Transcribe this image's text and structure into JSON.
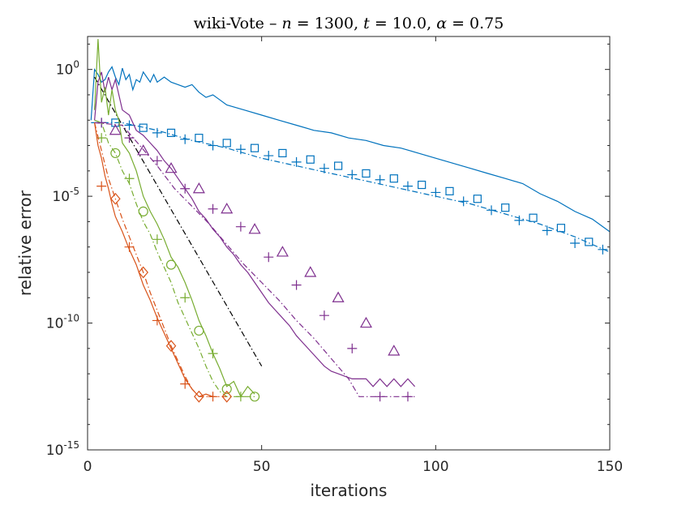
{
  "chart_data": {
    "type": "line",
    "title_parts": [
      "wiki-Vote – ",
      "n",
      " = 1300, ",
      "t",
      " = 10.0, ",
      "α",
      " = 0.75"
    ],
    "title": "wiki-Vote – n = 1300, t = 10.0, α = 0.75",
    "xlabel": "iterations",
    "ylabel": "relative error",
    "xlim": [
      0,
      150
    ],
    "ylim_log10": [
      -15,
      1.3
    ],
    "yscale": "log",
    "x_ticks": [
      0,
      50,
      100,
      150
    ],
    "x_tick_labels": [
      "0",
      "50",
      "100",
      "150"
    ],
    "y_ticks_log10": [
      -15,
      -10,
      -5,
      0
    ],
    "y_tick_labels": [
      {
        "base": "10",
        "exp": "-15"
      },
      {
        "base": "10",
        "exp": "-10"
      },
      {
        "base": "10",
        "exp": "-5"
      },
      {
        "base": "10",
        "exp": "0"
      }
    ],
    "grid": false,
    "series": [
      {
        "name": "blue-solid",
        "color": "#0072BD",
        "dash": "solid",
        "marker": "none",
        "points": [
          [
            1,
            -2
          ],
          [
            2,
            0
          ],
          [
            3,
            -0.2
          ],
          [
            4,
            -0.5
          ],
          [
            5,
            -0.4
          ],
          [
            6,
            -0.1
          ],
          [
            7,
            0.1
          ],
          [
            8,
            -0.3
          ],
          [
            9,
            -0.6
          ],
          [
            10,
            0.05
          ],
          [
            11,
            -0.4
          ],
          [
            12,
            -0.2
          ],
          [
            13,
            -0.8
          ],
          [
            14,
            -0.4
          ],
          [
            15,
            -0.5
          ],
          [
            16,
            -0.1
          ],
          [
            17,
            -0.3
          ],
          [
            18,
            -0.5
          ],
          [
            19,
            -0.2
          ],
          [
            20,
            -0.5
          ],
          [
            22,
            -0.3
          ],
          [
            24,
            -0.5
          ],
          [
            26,
            -0.6
          ],
          [
            28,
            -0.7
          ],
          [
            30,
            -0.6
          ],
          [
            32,
            -0.9
          ],
          [
            34,
            -1.1
          ],
          [
            36,
            -1.0
          ],
          [
            38,
            -1.2
          ],
          [
            40,
            -1.4
          ],
          [
            45,
            -1.6
          ],
          [
            50,
            -1.8
          ],
          [
            55,
            -2.0
          ],
          [
            60,
            -2.2
          ],
          [
            65,
            -2.4
          ],
          [
            70,
            -2.5
          ],
          [
            75,
            -2.7
          ],
          [
            80,
            -2.8
          ],
          [
            85,
            -3.0
          ],
          [
            90,
            -3.1
          ],
          [
            95,
            -3.3
          ],
          [
            100,
            -3.5
          ],
          [
            105,
            -3.7
          ],
          [
            110,
            -3.9
          ],
          [
            115,
            -4.1
          ],
          [
            120,
            -4.3
          ],
          [
            125,
            -4.5
          ],
          [
            130,
            -4.9
          ],
          [
            135,
            -5.2
          ],
          [
            140,
            -5.6
          ],
          [
            145,
            -5.9
          ],
          [
            150,
            -6.4
          ]
        ]
      },
      {
        "name": "blue-dashdot-square",
        "color": "#0072BD",
        "dash": "dashdot",
        "marker": "square",
        "points": [
          [
            1,
            -2.1
          ],
          [
            10,
            -2.1
          ],
          [
            20,
            -2.4
          ],
          [
            30,
            -2.8
          ],
          [
            40,
            -3.1
          ],
          [
            50,
            -3.5
          ],
          [
            60,
            -3.8
          ],
          [
            70,
            -4.1
          ],
          [
            80,
            -4.4
          ],
          [
            90,
            -4.7
          ],
          [
            100,
            -5.0
          ],
          [
            110,
            -5.3
          ],
          [
            120,
            -5.7
          ],
          [
            130,
            -6.1
          ],
          [
            140,
            -6.6
          ],
          [
            150,
            -7.2
          ]
        ],
        "marker_x": [
          8,
          16,
          24,
          32,
          40,
          48,
          56,
          64,
          72,
          80,
          88,
          96,
          104,
          112,
          120,
          128,
          136,
          144
        ],
        "marker_y": [
          -2.1,
          -2.3,
          -2.5,
          -2.7,
          -2.9,
          -3.1,
          -3.3,
          -3.55,
          -3.8,
          -4.1,
          -4.3,
          -4.55,
          -4.8,
          -5.1,
          -5.45,
          -5.85,
          -6.25,
          -6.8
        ]
      },
      {
        "name": "blue-plus",
        "color": "#0072BD",
        "dash": "none",
        "marker": "plus",
        "marker_x": [
          4,
          12,
          20,
          28,
          36,
          44,
          52,
          60,
          68,
          76,
          84,
          92,
          100,
          108,
          116,
          124,
          132,
          140,
          148
        ],
        "marker_y": [
          -2.1,
          -2.2,
          -2.5,
          -2.75,
          -3.0,
          -3.15,
          -3.4,
          -3.65,
          -3.9,
          -4.15,
          -4.35,
          -4.6,
          -4.85,
          -5.2,
          -5.55,
          -5.95,
          -6.35,
          -6.85,
          -7.1
        ]
      },
      {
        "name": "black-dashdot",
        "color": "#000000",
        "dash": "dashdot",
        "marker": "none",
        "points": [
          [
            2,
            -0.3
          ],
          [
            50,
            -11.7
          ]
        ]
      },
      {
        "name": "purple-solid",
        "color": "#7E2F8E",
        "dash": "solid",
        "marker": "none",
        "points": [
          [
            2,
            -2
          ],
          [
            3,
            -0.5
          ],
          [
            4,
            -0.1
          ],
          [
            5,
            -0.9
          ],
          [
            6,
            -0.3
          ],
          [
            7,
            -0.8
          ],
          [
            8,
            -0.4
          ],
          [
            9,
            -1.0
          ],
          [
            10,
            -1.6
          ],
          [
            12,
            -1.8
          ],
          [
            14,
            -2.4
          ],
          [
            16,
            -2.6
          ],
          [
            18,
            -2.9
          ],
          [
            20,
            -3.2
          ],
          [
            22,
            -3.6
          ],
          [
            24,
            -3.9
          ],
          [
            26,
            -4.3
          ],
          [
            28,
            -4.7
          ],
          [
            30,
            -5.1
          ],
          [
            32,
            -5.6
          ],
          [
            34,
            -5.9
          ],
          [
            36,
            -6.3
          ],
          [
            38,
            -6.6
          ],
          [
            40,
            -7.0
          ],
          [
            42,
            -7.3
          ],
          [
            44,
            -7.7
          ],
          [
            46,
            -8.0
          ],
          [
            48,
            -8.4
          ],
          [
            50,
            -8.8
          ],
          [
            52,
            -9.2
          ],
          [
            54,
            -9.5
          ],
          [
            56,
            -9.8
          ],
          [
            58,
            -10.1
          ],
          [
            60,
            -10.5
          ],
          [
            62,
            -10.8
          ],
          [
            64,
            -11.1
          ],
          [
            66,
            -11.4
          ],
          [
            68,
            -11.7
          ],
          [
            70,
            -11.9
          ],
          [
            72,
            -12.0
          ],
          [
            74,
            -12.1
          ],
          [
            76,
            -12.2
          ],
          [
            78,
            -12.2
          ],
          [
            80,
            -12.2
          ],
          [
            82,
            -12.5
          ],
          [
            84,
            -12.2
          ],
          [
            86,
            -12.5
          ],
          [
            88,
            -12.2
          ],
          [
            90,
            -12.5
          ],
          [
            92,
            -12.2
          ],
          [
            94,
            -12.5
          ]
        ]
      },
      {
        "name": "purple-dashdot-triangle",
        "color": "#7E2F8E",
        "dash": "dashdot",
        "marker": "triangle",
        "points": [
          [
            2,
            -2.1
          ],
          [
            10,
            -2.2
          ],
          [
            15,
            -3.0
          ],
          [
            20,
            -3.8
          ],
          [
            25,
            -4.7
          ],
          [
            30,
            -5.4
          ],
          [
            35,
            -6.1
          ],
          [
            40,
            -6.9
          ],
          [
            45,
            -7.7
          ],
          [
            50,
            -8.4
          ],
          [
            55,
            -9.1
          ],
          [
            60,
            -9.9
          ],
          [
            65,
            -10.6
          ],
          [
            70,
            -11.4
          ],
          [
            75,
            -12.2
          ],
          [
            78,
            -12.9
          ],
          [
            85,
            -12.9
          ],
          [
            94,
            -12.9
          ]
        ],
        "marker_x": [
          8,
          16,
          24,
          32,
          40,
          48,
          56,
          64,
          72,
          80,
          88
        ],
        "marker_y": [
          -2.4,
          -3.2,
          -3.9,
          -4.7,
          -5.5,
          -6.3,
          -7.2,
          -8.0,
          -9.0,
          -10.0,
          -11.1
        ]
      },
      {
        "name": "purple-plus",
        "color": "#7E2F8E",
        "dash": "none",
        "marker": "plus",
        "marker_x": [
          4,
          12,
          20,
          28,
          36,
          44,
          52,
          60,
          68,
          76,
          84,
          92
        ],
        "marker_y": [
          -2.1,
          -2.7,
          -3.6,
          -4.7,
          -5.5,
          -6.2,
          -7.4,
          -8.5,
          -9.7,
          -11.0,
          -12.9,
          -12.9
        ]
      },
      {
        "name": "green-solid",
        "color": "#77AC30",
        "dash": "solid",
        "marker": "none",
        "points": [
          [
            2,
            -1.6
          ],
          [
            3,
            1.2
          ],
          [
            4,
            -1.3
          ],
          [
            5,
            -0.7
          ],
          [
            6,
            -1.8
          ],
          [
            7,
            -0.8
          ],
          [
            8,
            -1.6
          ],
          [
            9,
            -2.0
          ],
          [
            10,
            -2.9
          ],
          [
            12,
            -3.3
          ],
          [
            14,
            -4.0
          ],
          [
            16,
            -5.0
          ],
          [
            18,
            -5.6
          ],
          [
            20,
            -6.1
          ],
          [
            22,
            -6.7
          ],
          [
            24,
            -7.4
          ],
          [
            26,
            -7.8
          ],
          [
            28,
            -8.4
          ],
          [
            30,
            -9.1
          ],
          [
            32,
            -9.9
          ],
          [
            34,
            -10.5
          ],
          [
            36,
            -11.2
          ],
          [
            38,
            -11.8
          ],
          [
            40,
            -12.5
          ],
          [
            42,
            -12.3
          ],
          [
            44,
            -12.9
          ],
          [
            46,
            -12.5
          ],
          [
            48,
            -12.8
          ]
        ]
      },
      {
        "name": "green-dashdot-circle",
        "color": "#77AC30",
        "dash": "dashdot",
        "marker": "circle",
        "points": [
          [
            2,
            -2.0
          ],
          [
            4,
            -2.1
          ],
          [
            6,
            -2.9
          ],
          [
            8,
            -3.3
          ],
          [
            10,
            -4.0
          ],
          [
            12,
            -4.5
          ],
          [
            14,
            -5.3
          ],
          [
            16,
            -6.0
          ],
          [
            18,
            -6.5
          ],
          [
            20,
            -7.2
          ],
          [
            22,
            -7.8
          ],
          [
            24,
            -8.4
          ],
          [
            26,
            -9.2
          ],
          [
            28,
            -9.8
          ],
          [
            30,
            -10.4
          ],
          [
            32,
            -11.0
          ],
          [
            34,
            -11.7
          ],
          [
            36,
            -12.3
          ],
          [
            38,
            -12.7
          ],
          [
            40,
            -12.9
          ],
          [
            44,
            -12.9
          ],
          [
            48,
            -12.9
          ]
        ],
        "marker_x": [
          8,
          16,
          24,
          32,
          40,
          48
        ],
        "marker_y": [
          -3.3,
          -5.6,
          -7.7,
          -10.3,
          -12.6,
          -12.9
        ]
      },
      {
        "name": "green-plus",
        "color": "#77AC30",
        "dash": "none",
        "marker": "plus",
        "marker_x": [
          4,
          12,
          20,
          28,
          36,
          44
        ],
        "marker_y": [
          -2.7,
          -4.3,
          -6.7,
          -9.0,
          -11.2,
          -12.9
        ]
      },
      {
        "name": "orange-solid",
        "color": "#D95319",
        "dash": "solid",
        "marker": "none",
        "points": [
          [
            2,
            -2.1
          ],
          [
            3,
            -3.0
          ],
          [
            4,
            -3.5
          ],
          [
            5,
            -4.2
          ],
          [
            6,
            -4.7
          ],
          [
            7,
            -5.3
          ],
          [
            8,
            -5.8
          ],
          [
            10,
            -6.4
          ],
          [
            12,
            -7.1
          ],
          [
            14,
            -7.7
          ],
          [
            16,
            -8.5
          ],
          [
            18,
            -9.1
          ],
          [
            20,
            -9.8
          ],
          [
            22,
            -10.4
          ],
          [
            24,
            -11.0
          ],
          [
            26,
            -11.6
          ],
          [
            28,
            -12.2
          ],
          [
            30,
            -12.6
          ],
          [
            32,
            -12.9
          ],
          [
            34,
            -12.8
          ],
          [
            36,
            -12.9
          ]
        ]
      },
      {
        "name": "orange-dashdot-diamond",
        "color": "#D95319",
        "dash": "dashdot",
        "marker": "diamond",
        "points": [
          [
            2,
            -2.1
          ],
          [
            4,
            -3.2
          ],
          [
            6,
            -4.3
          ],
          [
            8,
            -5.1
          ],
          [
            10,
            -5.9
          ],
          [
            12,
            -6.6
          ],
          [
            14,
            -7.3
          ],
          [
            16,
            -8.0
          ],
          [
            18,
            -8.8
          ],
          [
            20,
            -9.5
          ],
          [
            22,
            -10.2
          ],
          [
            24,
            -10.9
          ],
          [
            26,
            -11.5
          ],
          [
            28,
            -12.1
          ],
          [
            30,
            -12.6
          ],
          [
            32,
            -12.9
          ],
          [
            36,
            -12.9
          ],
          [
            40,
            -12.9
          ]
        ],
        "marker_x": [
          8,
          16,
          24,
          32,
          40
        ],
        "marker_y": [
          -5.1,
          -8.0,
          -10.9,
          -12.9,
          -12.9
        ]
      },
      {
        "name": "orange-plus",
        "color": "#D95319",
        "dash": "none",
        "marker": "plus",
        "marker_x": [
          4,
          12,
          20,
          28,
          36
        ],
        "marker_y": [
          -4.6,
          -7.0,
          -9.9,
          -12.4,
          -12.9
        ]
      }
    ]
  }
}
